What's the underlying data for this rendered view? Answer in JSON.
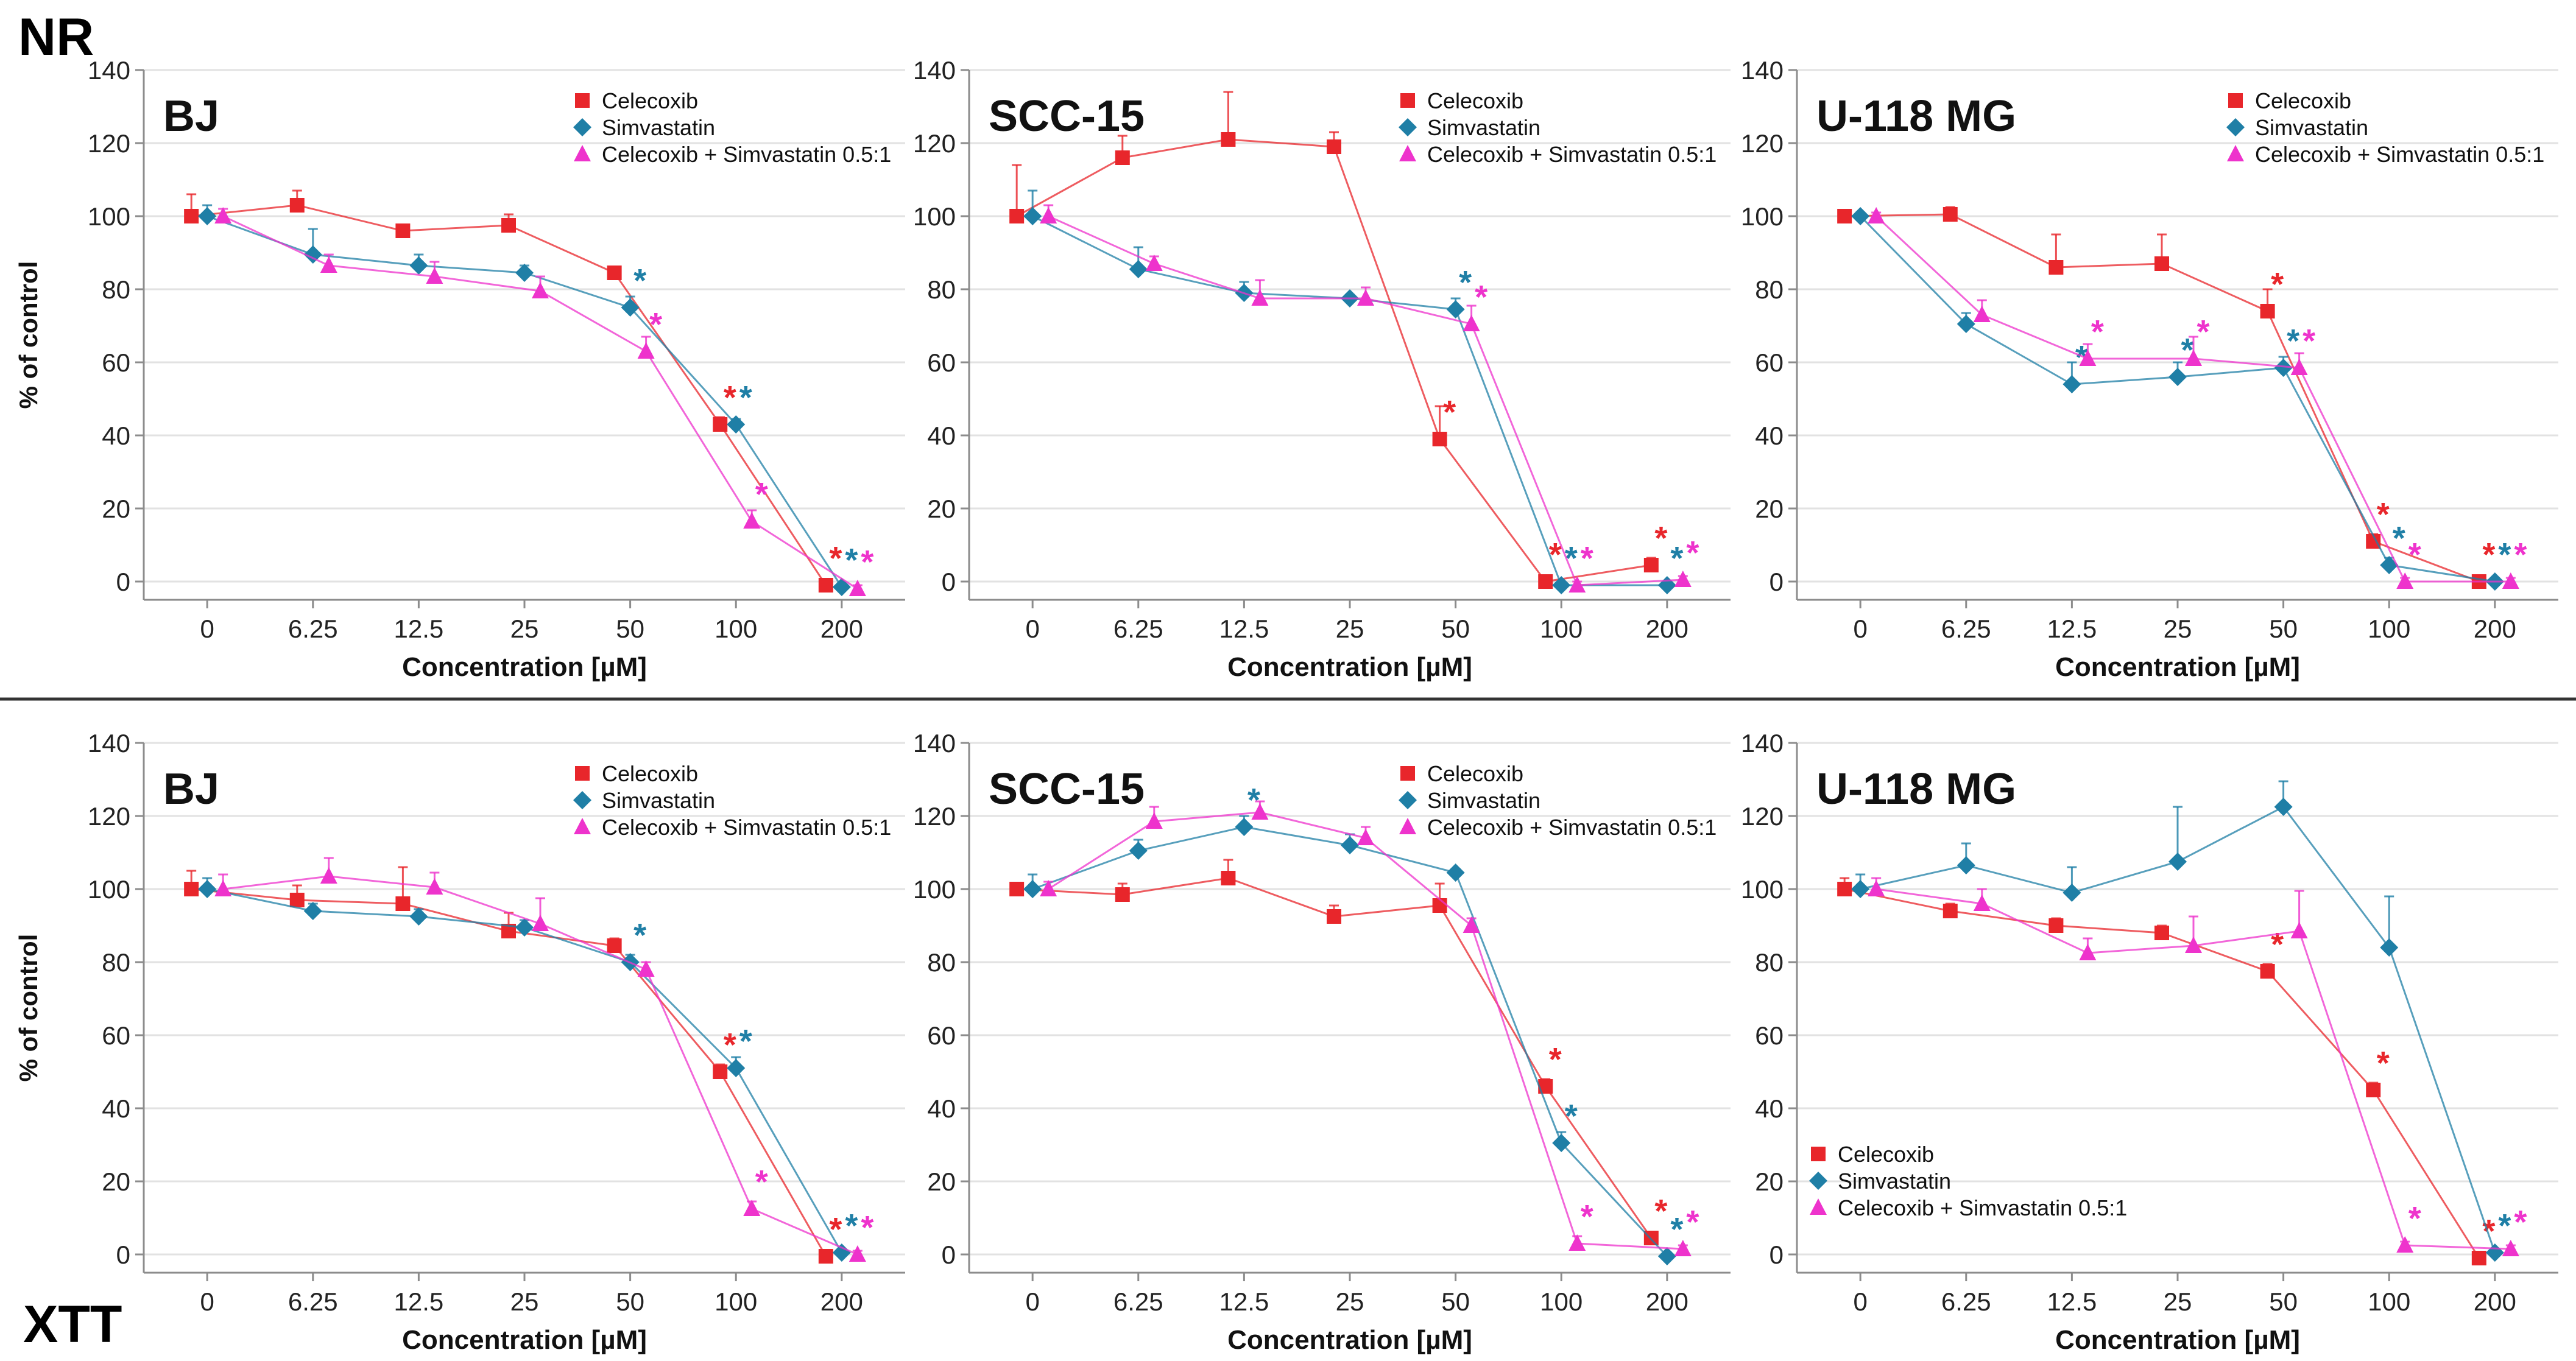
{
  "figure": {
    "row_labels": {
      "top": "NR",
      "bottom": "XTT"
    },
    "colors": {
      "celecoxib": "#e8262b",
      "simvastatin": "#1f7fa6",
      "combo": "#ee33cc",
      "grid": "#e2e2e2",
      "axis": "#8c8c8c",
      "separator": "#333333"
    },
    "legend_labels": [
      "Celecoxib",
      "Simvastatin",
      "Celecoxib + Simvastatin 0.5:1"
    ],
    "significance_mark": "*"
  },
  "chart_data": [
    {
      "type": "line",
      "row": "NR",
      "title": "BJ",
      "xlabel": "Concentration [µM]",
      "ylabel": "% of control",
      "categories": [
        "0",
        "6.25",
        "12.5",
        "25",
        "50",
        "100",
        "200"
      ],
      "ylim": [
        -5,
        140
      ],
      "yticks": [
        "0",
        "20",
        "40",
        "60",
        "80",
        "100",
        "120",
        "140"
      ],
      "grid": true,
      "legend_position": "top-right",
      "series": [
        {
          "name": "Celecoxib",
          "values": [
            100,
            103,
            96,
            97.5,
            84.5,
            43,
            -1
          ],
          "errors": [
            6,
            4,
            1,
            3,
            1,
            2,
            1
          ],
          "significant": [
            false,
            false,
            false,
            false,
            false,
            true,
            true
          ]
        },
        {
          "name": "Simvastatin",
          "values": [
            100,
            89.5,
            86.5,
            84.5,
            75,
            43,
            -1.5
          ],
          "errors": [
            3,
            7,
            3,
            2,
            3,
            1.5,
            1
          ],
          "significant": [
            false,
            false,
            false,
            false,
            true,
            true,
            true
          ]
        },
        {
          "name": "Celecoxib + Simvastatin 0.5:1",
          "values": [
            100,
            86.5,
            83.5,
            79.5,
            63,
            16.5,
            -2
          ],
          "errors": [
            2,
            3,
            4,
            4,
            4,
            3,
            1
          ],
          "significant": [
            false,
            false,
            false,
            false,
            true,
            true,
            true
          ]
        }
      ]
    },
    {
      "type": "line",
      "row": "NR",
      "title": "SCC-15",
      "xlabel": "Concentration [µM]",
      "ylabel": "",
      "categories": [
        "0",
        "6.25",
        "12.5",
        "25",
        "50",
        "100",
        "200"
      ],
      "ylim": [
        -5,
        140
      ],
      "yticks": [
        "0",
        "20",
        "40",
        "60",
        "80",
        "100",
        "120",
        "140"
      ],
      "grid": true,
      "legend_position": "top-right",
      "series": [
        {
          "name": "Celecoxib",
          "values": [
            100,
            116,
            121,
            119,
            39,
            0,
            4.5
          ],
          "errors": [
            14,
            6,
            13,
            4,
            9,
            1,
            2
          ],
          "significant": [
            false,
            false,
            false,
            false,
            true,
            true,
            true
          ]
        },
        {
          "name": "Simvastatin",
          "values": [
            100,
            85.5,
            79,
            77.5,
            74.5,
            -1,
            -1
          ],
          "errors": [
            7,
            6,
            3,
            1,
            3,
            1,
            1
          ],
          "significant": [
            false,
            false,
            false,
            false,
            true,
            true,
            true
          ]
        },
        {
          "name": "Celecoxib + Simvastatin 0.5:1",
          "values": [
            100,
            87,
            77.5,
            77.5,
            70.5,
            -1,
            0.5
          ],
          "errors": [
            3,
            2,
            5,
            3,
            5,
            1,
            1
          ],
          "significant": [
            false,
            false,
            false,
            false,
            true,
            true,
            true
          ]
        }
      ]
    },
    {
      "type": "line",
      "row": "NR",
      "title": "U-118 MG",
      "xlabel": "Concentration [µM]",
      "ylabel": "",
      "categories": [
        "0",
        "6.25",
        "12.5",
        "25",
        "50",
        "100",
        "200"
      ],
      "ylim": [
        -5,
        140
      ],
      "yticks": [
        "0",
        "20",
        "40",
        "60",
        "80",
        "100",
        "120",
        "140"
      ],
      "grid": true,
      "legend_position": "top-right",
      "series": [
        {
          "name": "Celecoxib",
          "values": [
            100,
            100.5,
            86,
            87,
            74,
            11,
            0
          ],
          "errors": [
            1,
            2,
            9,
            8,
            6,
            2,
            1
          ],
          "significant": [
            false,
            false,
            false,
            false,
            true,
            true,
            true
          ]
        },
        {
          "name": "Simvastatin",
          "values": [
            100,
            70.5,
            54,
            56,
            58.5,
            4.5,
            0
          ],
          "errors": [
            1,
            3,
            6,
            4,
            3,
            2,
            1
          ],
          "significant": [
            false,
            false,
            true,
            true,
            true,
            true,
            true
          ]
        },
        {
          "name": "Celecoxib + Simvastatin 0.5:1",
          "values": [
            100,
            73,
            61,
            61,
            58.5,
            0,
            0
          ],
          "errors": [
            1,
            4,
            4,
            6,
            4,
            1,
            1
          ],
          "significant": [
            false,
            false,
            true,
            true,
            true,
            true,
            true
          ]
        }
      ]
    },
    {
      "type": "line",
      "row": "XTT",
      "title": "BJ",
      "xlabel": "Concentration [µM]",
      "ylabel": "% of control",
      "categories": [
        "0",
        "6.25",
        "12.5",
        "25",
        "50",
        "100",
        "200"
      ],
      "ylim": [
        -5,
        140
      ],
      "yticks": [
        "0",
        "20",
        "40",
        "60",
        "80",
        "100",
        "120",
        "140"
      ],
      "grid": true,
      "legend_position": "top-right",
      "series": [
        {
          "name": "Celecoxib",
          "values": [
            100,
            97,
            96,
            88.5,
            84.5,
            50,
            -0.5
          ],
          "errors": [
            5,
            4,
            10,
            5,
            2,
            2,
            1
          ],
          "significant": [
            false,
            false,
            false,
            false,
            false,
            true,
            true
          ]
        },
        {
          "name": "Simvastatin",
          "values": [
            100,
            94,
            92.5,
            89.5,
            80,
            51,
            0.5
          ],
          "errors": [
            3,
            2,
            2,
            2,
            2,
            3,
            1
          ],
          "significant": [
            false,
            false,
            false,
            false,
            true,
            true,
            true
          ]
        },
        {
          "name": "Celecoxib + Simvastatin 0.5:1",
          "values": [
            100,
            103.5,
            100.5,
            90.5,
            78,
            12.5,
            0
          ],
          "errors": [
            4,
            5,
            4,
            7,
            2,
            2,
            1
          ],
          "significant": [
            false,
            false,
            false,
            false,
            false,
            true,
            true
          ]
        }
      ]
    },
    {
      "type": "line",
      "row": "XTT",
      "title": "SCC-15",
      "xlabel": "Concentration [µM]",
      "ylabel": "",
      "categories": [
        "0",
        "6.25",
        "12.5",
        "25",
        "50",
        "100",
        "200"
      ],
      "ylim": [
        -5,
        140
      ],
      "yticks": [
        "0",
        "20",
        "40",
        "60",
        "80",
        "100",
        "120",
        "140"
      ],
      "grid": true,
      "legend_position": "top-right",
      "series": [
        {
          "name": "Celecoxib",
          "values": [
            100,
            98.5,
            103,
            92.5,
            95.5,
            46,
            4.5
          ],
          "errors": [
            1,
            3,
            5,
            3,
            6,
            2,
            1
          ],
          "significant": [
            false,
            false,
            false,
            false,
            false,
            true,
            true
          ]
        },
        {
          "name": "Simvastatin",
          "values": [
            100,
            110.5,
            117,
            112,
            104.5,
            30.5,
            -0.5
          ],
          "errors": [
            4,
            3,
            3,
            3,
            1,
            3,
            1
          ],
          "significant": [
            false,
            false,
            true,
            false,
            false,
            true,
            true
          ]
        },
        {
          "name": "Celecoxib + Simvastatin 0.5:1",
          "values": [
            100,
            118.5,
            121,
            114,
            90,
            3,
            1.5
          ],
          "errors": [
            2,
            4,
            3,
            3,
            2,
            2,
            1
          ],
          "significant": [
            false,
            false,
            false,
            false,
            false,
            true,
            true
          ]
        }
      ]
    },
    {
      "type": "line",
      "row": "XTT",
      "title": "U-118 MG",
      "xlabel": "Concentration [µM]",
      "ylabel": "",
      "categories": [
        "0",
        "6.25",
        "12.5",
        "25",
        "50",
        "100",
        "200"
      ],
      "ylim": [
        -5,
        140
      ],
      "yticks": [
        "0",
        "20",
        "40",
        "60",
        "80",
        "100",
        "120",
        "140"
      ],
      "grid": true,
      "legend_position": "bottom-left",
      "series": [
        {
          "name": "Celecoxib",
          "values": [
            100,
            94,
            90,
            88,
            77.5,
            45,
            -1
          ],
          "errors": [
            3,
            2,
            2,
            2,
            2,
            2,
            1
          ],
          "significant": [
            false,
            false,
            false,
            false,
            true,
            true,
            true
          ]
        },
        {
          "name": "Simvastatin",
          "values": [
            100,
            106.5,
            99,
            107.5,
            122.5,
            84,
            0.5
          ],
          "errors": [
            4,
            6,
            7,
            15,
            7,
            14,
            1
          ],
          "significant": [
            false,
            false,
            false,
            false,
            false,
            false,
            true
          ]
        },
        {
          "name": "Celecoxib + Simvastatin 0.5:1",
          "values": [
            100,
            96,
            82.5,
            84.5,
            88.5,
            2.5,
            1.5
          ],
          "errors": [
            3,
            4,
            4,
            8,
            11,
            1,
            1
          ],
          "significant": [
            false,
            false,
            false,
            false,
            false,
            true,
            true
          ]
        }
      ]
    }
  ]
}
